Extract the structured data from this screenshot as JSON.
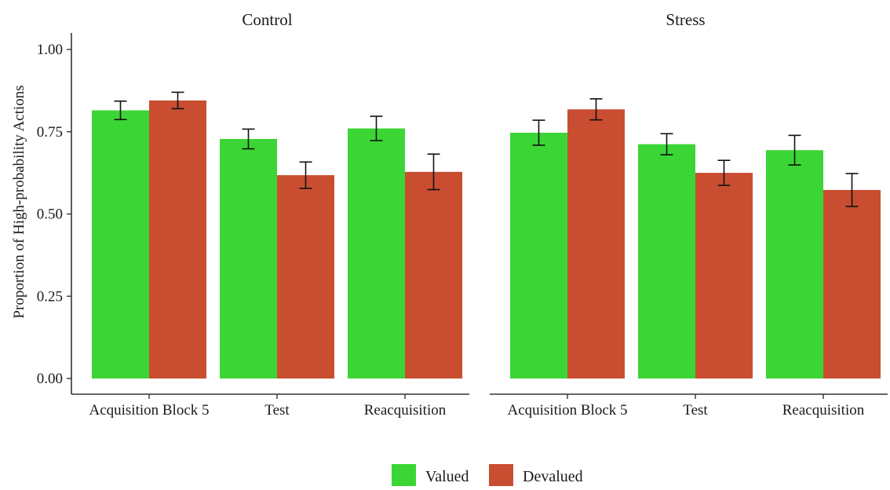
{
  "chart_data": {
    "type": "bar",
    "ylabel": "Proportion of High-probability Actions",
    "xlabel": "",
    "ylim": [
      0,
      1.0
    ],
    "yticks": [
      "0.00",
      "0.25",
      "0.50",
      "0.75",
      "1.00"
    ],
    "grid": false,
    "legend_position": "bottom",
    "categories": [
      "Acquisition Block 5",
      "Test",
      "Reacquisition"
    ],
    "series_names": [
      "Valued",
      "Devalued"
    ],
    "colors": {
      "Valued": "#3bd635",
      "Devalued": "#c94e31"
    },
    "facets": [
      {
        "title": "Control",
        "series": [
          {
            "name": "Valued",
            "values": [
              0.815,
              0.728,
              0.76
            ],
            "error": [
              0.028,
              0.03,
              0.037
            ]
          },
          {
            "name": "Devalued",
            "values": [
              0.845,
              0.618,
              0.628
            ],
            "error": [
              0.025,
              0.04,
              0.054
            ]
          }
        ]
      },
      {
        "title": "Stress",
        "series": [
          {
            "name": "Valued",
            "values": [
              0.747,
              0.712,
              0.694
            ],
            "error": [
              0.038,
              0.032,
              0.045
            ]
          },
          {
            "name": "Devalued",
            "values": [
              0.818,
              0.625,
              0.573
            ],
            "error": [
              0.032,
              0.038,
              0.05
            ]
          }
        ]
      }
    ]
  }
}
